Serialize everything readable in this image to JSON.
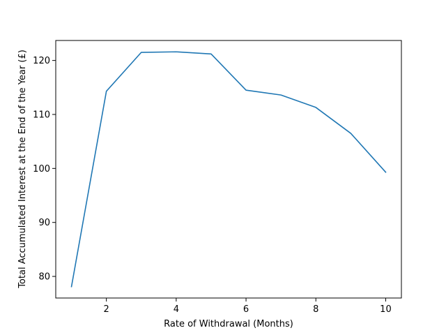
{
  "chart_data": {
    "type": "line",
    "title": "",
    "xlabel": "Rate of Withdrawal (Months)",
    "ylabel": "Total Accumulated Interest at the End of the Year (£)",
    "x": [
      1,
      2,
      3,
      4,
      5,
      6,
      7,
      8,
      9,
      10
    ],
    "series": [
      {
        "values": [
          78.1,
          114.3,
          121.5,
          121.6,
          121.2,
          114.5,
          113.6,
          111.3,
          106.5,
          99.3
        ],
        "color": "#1f77b4"
      }
    ],
    "xlim": [
      0.55,
      10.45
    ],
    "ylim": [
      76.0,
      123.7
    ],
    "xticks": [
      2,
      4,
      6,
      8,
      10
    ],
    "yticks": [
      80,
      90,
      100,
      110,
      120
    ],
    "grid": false,
    "legend": "none"
  }
}
